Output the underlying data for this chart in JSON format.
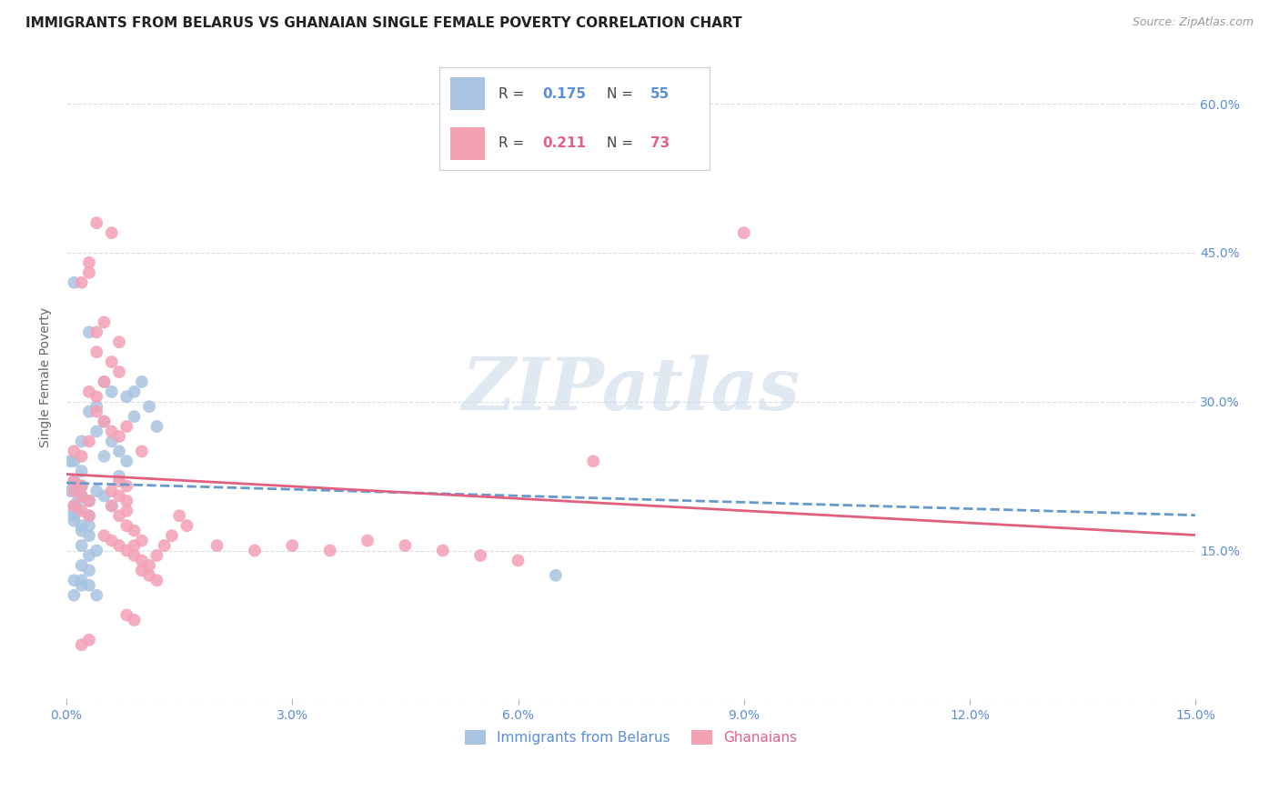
{
  "title": "IMMIGRANTS FROM BELARUS VS GHANAIAN SINGLE FEMALE POVERTY CORRELATION CHART",
  "source": "Source: ZipAtlas.com",
  "ylabel": "Single Female Poverty",
  "color_blue": "#a8c4e0",
  "color_pink": "#f4a0b5",
  "color_blue_text": "#5b8dd9",
  "color_pink_text": "#e0608a",
  "color_watermark": "#ccd9e8",
  "trendline_blue_color": "#6699cc",
  "trendline_pink_color": "#e06080",
  "background_color": "#ffffff",
  "grid_color": "#d8dde8",
  "x_tick_positions": [
    0.0,
    0.03,
    0.06,
    0.09,
    0.12,
    0.15
  ],
  "x_tick_labels": [
    "0.0%",
    "3.0%",
    "6.0%",
    "9.0%",
    "12.0%",
    "15.0%"
  ],
  "y_tick_positions": [
    0.0,
    0.15,
    0.3,
    0.45,
    0.6
  ],
  "y_tick_labels": [
    "",
    "15.0%",
    "30.0%",
    "45.0%",
    "60.0%"
  ],
  "xlim": [
    0.0,
    0.15
  ],
  "ylim": [
    0.0,
    0.65
  ],
  "legend_r1": "0.175",
  "legend_n1": "55",
  "legend_r2": "0.211",
  "legend_n2": "73",
  "bottom_legend_labels": [
    "Immigrants from Belarus",
    "Ghanaians"
  ],
  "blue_scatter": [
    [
      0.001,
      0.215
    ],
    [
      0.002,
      0.205
    ],
    [
      0.003,
      0.185
    ],
    [
      0.001,
      0.195
    ],
    [
      0.002,
      0.175
    ],
    [
      0.003,
      0.165
    ],
    [
      0.001,
      0.22
    ],
    [
      0.002,
      0.215
    ],
    [
      0.004,
      0.21
    ],
    [
      0.003,
      0.2
    ],
    [
      0.002,
      0.26
    ],
    [
      0.004,
      0.27
    ],
    [
      0.005,
      0.32
    ],
    [
      0.006,
      0.31
    ],
    [
      0.004,
      0.295
    ],
    [
      0.005,
      0.28
    ],
    [
      0.003,
      0.29
    ],
    [
      0.006,
      0.26
    ],
    [
      0.007,
      0.25
    ],
    [
      0.005,
      0.245
    ],
    [
      0.001,
      0.24
    ],
    [
      0.002,
      0.23
    ],
    [
      0.001,
      0.42
    ],
    [
      0.003,
      0.37
    ],
    [
      0.0005,
      0.21
    ],
    [
      0.001,
      0.19
    ],
    [
      0.001,
      0.18
    ],
    [
      0.002,
      0.17
    ],
    [
      0.001,
      0.185
    ],
    [
      0.003,
      0.175
    ],
    [
      0.002,
      0.155
    ],
    [
      0.003,
      0.145
    ],
    [
      0.004,
      0.15
    ],
    [
      0.002,
      0.135
    ],
    [
      0.003,
      0.13
    ],
    [
      0.002,
      0.115
    ],
    [
      0.001,
      0.12
    ],
    [
      0.002,
      0.12
    ],
    [
      0.003,
      0.115
    ],
    [
      0.001,
      0.105
    ],
    [
      0.004,
      0.105
    ],
    [
      0.005,
      0.205
    ],
    [
      0.006,
      0.195
    ],
    [
      0.007,
      0.225
    ],
    [
      0.008,
      0.24
    ],
    [
      0.01,
      0.32
    ],
    [
      0.009,
      0.31
    ],
    [
      0.008,
      0.305
    ],
    [
      0.011,
      0.295
    ],
    [
      0.009,
      0.285
    ],
    [
      0.012,
      0.275
    ],
    [
      0.0005,
      0.24
    ],
    [
      0.0015,
      0.2
    ],
    [
      0.0015,
      0.19
    ],
    [
      0.065,
      0.125
    ]
  ],
  "pink_scatter": [
    [
      0.001,
      0.22
    ],
    [
      0.002,
      0.215
    ],
    [
      0.001,
      0.21
    ],
    [
      0.002,
      0.205
    ],
    [
      0.003,
      0.2
    ],
    [
      0.001,
      0.195
    ],
    [
      0.002,
      0.19
    ],
    [
      0.003,
      0.185
    ],
    [
      0.001,
      0.25
    ],
    [
      0.002,
      0.245
    ],
    [
      0.003,
      0.26
    ],
    [
      0.004,
      0.29
    ],
    [
      0.003,
      0.31
    ],
    [
      0.004,
      0.35
    ],
    [
      0.005,
      0.32
    ],
    [
      0.004,
      0.305
    ],
    [
      0.002,
      0.42
    ],
    [
      0.003,
      0.43
    ],
    [
      0.006,
      0.47
    ],
    [
      0.004,
      0.48
    ],
    [
      0.003,
      0.44
    ],
    [
      0.005,
      0.38
    ],
    [
      0.004,
      0.37
    ],
    [
      0.007,
      0.36
    ],
    [
      0.006,
      0.34
    ],
    [
      0.007,
      0.33
    ],
    [
      0.005,
      0.28
    ],
    [
      0.006,
      0.27
    ],
    [
      0.007,
      0.265
    ],
    [
      0.008,
      0.275
    ],
    [
      0.007,
      0.22
    ],
    [
      0.008,
      0.215
    ],
    [
      0.006,
      0.21
    ],
    [
      0.007,
      0.205
    ],
    [
      0.008,
      0.2
    ],
    [
      0.006,
      0.195
    ],
    [
      0.008,
      0.19
    ],
    [
      0.007,
      0.185
    ],
    [
      0.008,
      0.175
    ],
    [
      0.009,
      0.17
    ],
    [
      0.005,
      0.165
    ],
    [
      0.006,
      0.16
    ],
    [
      0.007,
      0.155
    ],
    [
      0.008,
      0.15
    ],
    [
      0.009,
      0.145
    ],
    [
      0.01,
      0.16
    ],
    [
      0.009,
      0.155
    ],
    [
      0.01,
      0.14
    ],
    [
      0.011,
      0.135
    ],
    [
      0.01,
      0.13
    ],
    [
      0.011,
      0.125
    ],
    [
      0.012,
      0.12
    ],
    [
      0.008,
      0.085
    ],
    [
      0.009,
      0.08
    ],
    [
      0.01,
      0.25
    ],
    [
      0.05,
      0.15
    ],
    [
      0.055,
      0.145
    ],
    [
      0.06,
      0.14
    ],
    [
      0.07,
      0.24
    ],
    [
      0.09,
      0.47
    ],
    [
      0.04,
      0.16
    ],
    [
      0.045,
      0.155
    ],
    [
      0.03,
      0.155
    ],
    [
      0.035,
      0.15
    ],
    [
      0.025,
      0.15
    ],
    [
      0.02,
      0.155
    ],
    [
      0.015,
      0.185
    ],
    [
      0.016,
      0.175
    ],
    [
      0.014,
      0.165
    ],
    [
      0.013,
      0.155
    ],
    [
      0.012,
      0.145
    ],
    [
      0.002,
      0.055
    ],
    [
      0.003,
      0.06
    ]
  ]
}
